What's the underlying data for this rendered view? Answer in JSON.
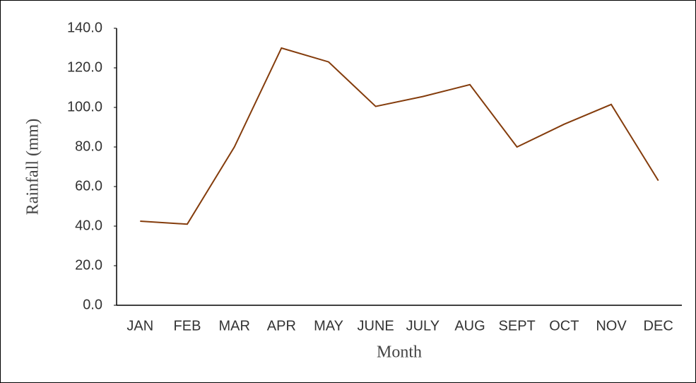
{
  "chart_data": {
    "type": "line",
    "x_label": "Month",
    "y_label": "Rainfall (mm)",
    "categories": [
      "JAN",
      "FEB",
      "MAR",
      "APR",
      "MAY",
      "JUNE",
      "JULY",
      "AUG",
      "SEPT",
      "OCT",
      "NOV",
      "DEC"
    ],
    "series": [
      {
        "name": "Rainfall",
        "color": "#843c0c",
        "values": [
          42.5,
          41,
          80,
          130,
          123,
          100.5,
          105.5,
          111.5,
          80,
          91.5,
          101.5,
          63
        ]
      }
    ],
    "ylim": [
      0,
      140
    ],
    "yticks": [
      {
        "value": 0,
        "label": "0.0"
      },
      {
        "value": 20,
        "label": "20.0"
      },
      {
        "value": 40,
        "label": "40.0"
      },
      {
        "value": 60,
        "label": "60.0"
      },
      {
        "value": 80,
        "label": "80.0"
      },
      {
        "value": 100,
        "label": "100.0"
      },
      {
        "value": 120,
        "label": "120.0"
      },
      {
        "value": 140,
        "label": "140.0"
      }
    ],
    "grid": false
  }
}
